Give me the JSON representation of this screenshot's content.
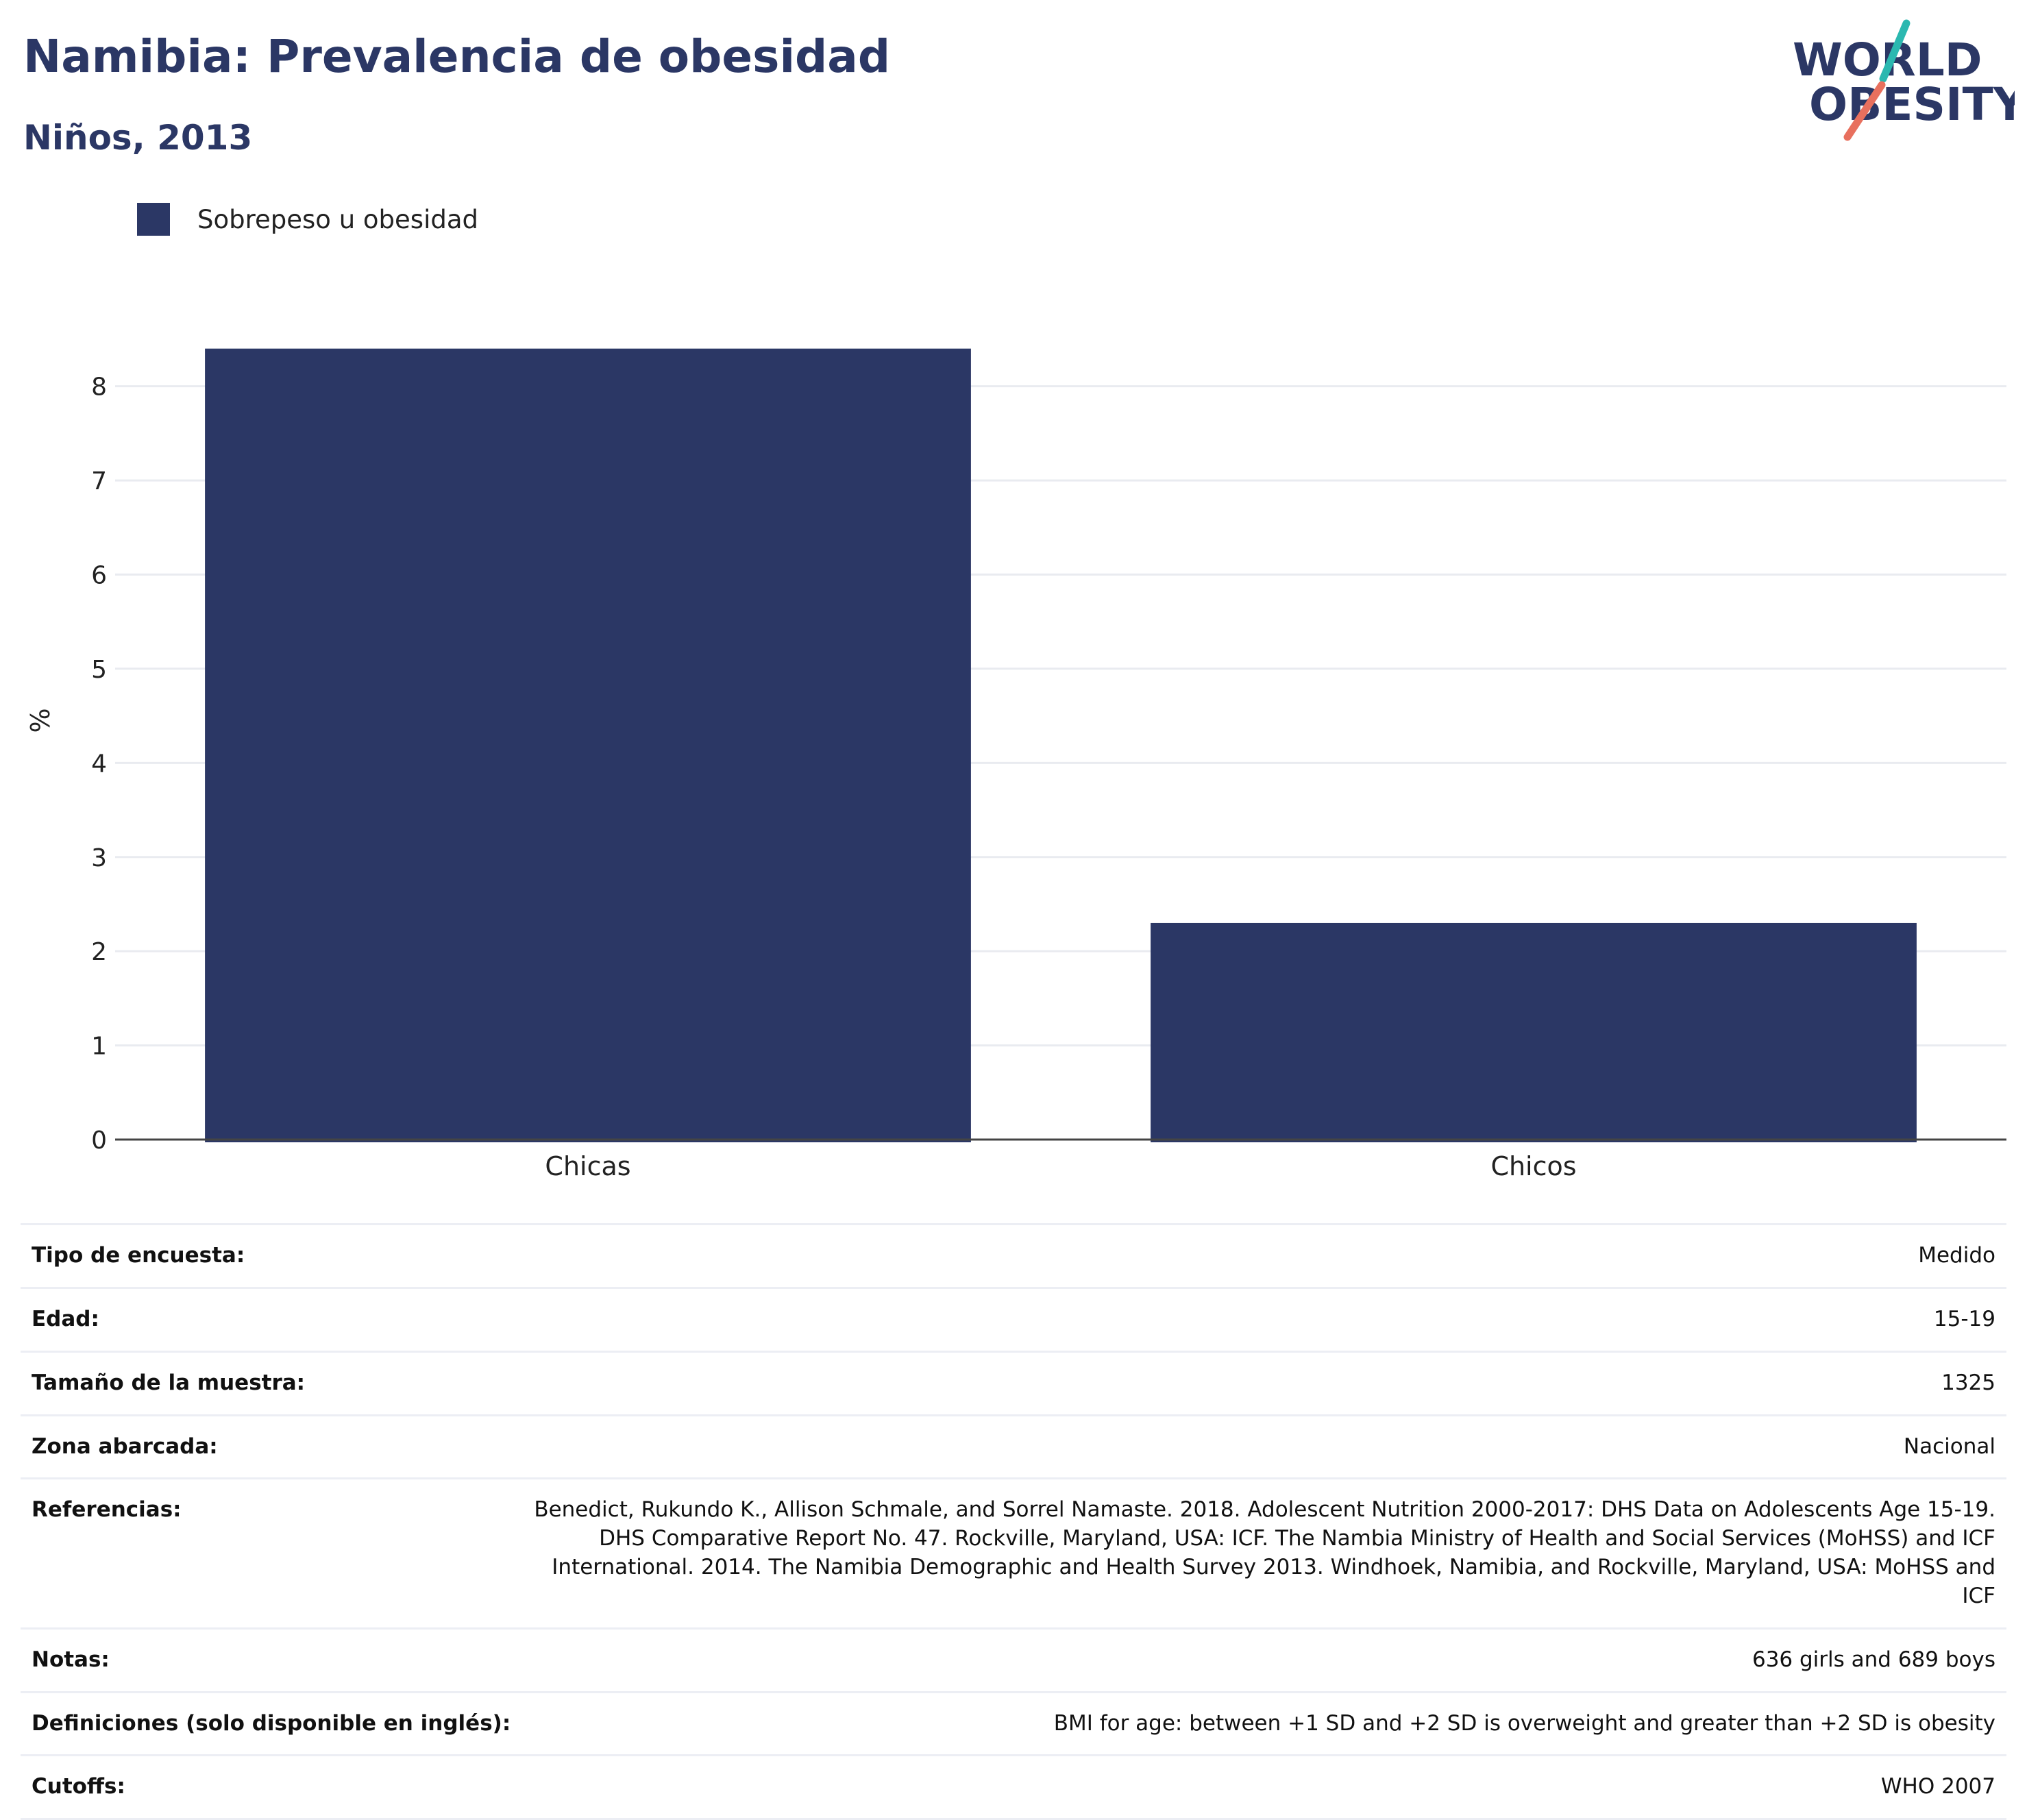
{
  "header": {
    "title": "Namibia: Prevalencia de obesidad",
    "subtitle": "Niños, 2013"
  },
  "logo": {
    "line1": "WORLD",
    "line2": "OBESITY",
    "accent_teal": "#2bb8b0",
    "accent_coral": "#e8705e",
    "text_color": "#2b3765"
  },
  "colors": {
    "bar": "#2b3765",
    "heading": "#2b3765",
    "grid": "#e9ebf0",
    "axis": "#444444"
  },
  "chart_data": {
    "type": "bar",
    "categories": [
      "Chicas",
      "Chicos"
    ],
    "series": [
      {
        "name": "Sobrepeso u obesidad",
        "values": [
          8.4,
          2.3
        ]
      }
    ],
    "ylabel": "%",
    "xlabel": "",
    "ylim": [
      0,
      8.9
    ],
    "yticks": [
      0,
      1,
      2,
      3,
      4,
      5,
      6,
      7,
      8
    ],
    "grid": true,
    "legend_position": "top-left"
  },
  "info": [
    {
      "key": "Tipo de encuesta:",
      "value": "Medido"
    },
    {
      "key": "Edad:",
      "value": "15-19"
    },
    {
      "key": "Tamaño de la muestra:",
      "value": "1325"
    },
    {
      "key": "Zona abarcada:",
      "value": "Nacional"
    },
    {
      "key": "Referencias:",
      "value": "Benedict, Rukundo K., Allison Schmale, and Sorrel Namaste. 2018. Adolescent Nutrition 2000-2017: DHS Data on Adolescents Age 15-19. DHS Comparative Report No. 47. Rockville, Maryland, USA: ICF. The Nambia Ministry of Health and Social Services (MoHSS) and ICF International. 2014. The Namibia Demographic and Health Survey 2013. Windhoek, Namibia, and Rockville, Maryland, USA: MoHSS and ICF"
    },
    {
      "key": "Notas:",
      "value": "636 girls and 689 boys"
    },
    {
      "key": "Definiciones (solo disponible en inglés):",
      "value": "BMI for age: between +1 SD and +2 SD is overweight and greater than +2 SD is obesity"
    },
    {
      "key": "Cutoffs:",
      "value": "WHO 2007"
    }
  ]
}
